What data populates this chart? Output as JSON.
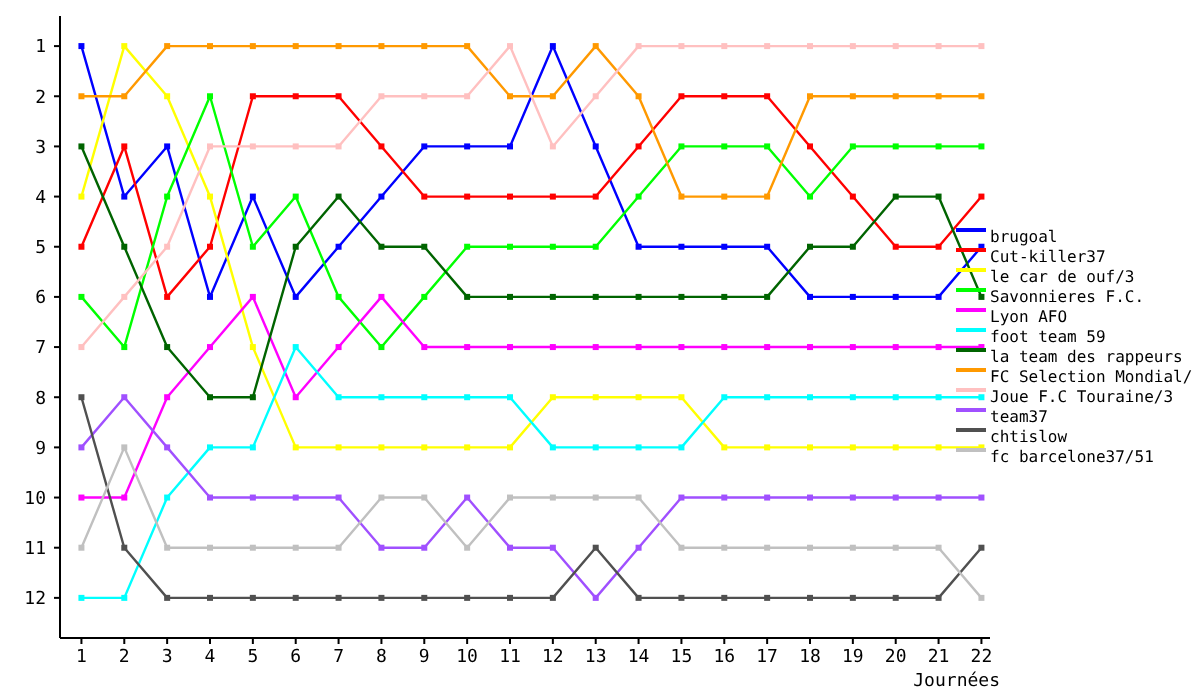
{
  "chart_data": {
    "type": "line",
    "xlabel": "Journées",
    "x": [
      1,
      2,
      3,
      4,
      5,
      6,
      7,
      8,
      9,
      10,
      11,
      12,
      13,
      14,
      15,
      16,
      17,
      18,
      19,
      20,
      21,
      22
    ],
    "xlim": [
      0.5,
      22.2
    ],
    "xticks": [
      1,
      2,
      3,
      4,
      5,
      6,
      7,
      8,
      9,
      10,
      11,
      12,
      13,
      14,
      15,
      16,
      17,
      18,
      19,
      20,
      21,
      22
    ],
    "ylim": [
      12.8,
      0.4
    ],
    "yticks": [
      1,
      2,
      3,
      4,
      5,
      6,
      7,
      8,
      9,
      10,
      11,
      12
    ],
    "grid": false,
    "legend": "right",
    "marker": "square",
    "line_style": "solid",
    "series": [
      {
        "name": "brugoal",
        "color": "#0000ff",
        "values": [
          1,
          4,
          3,
          6,
          4,
          6,
          5,
          4,
          3,
          3,
          3,
          1,
          3,
          5,
          5,
          5,
          5,
          6,
          6,
          6,
          6,
          5
        ]
      },
      {
        "name": "Cut-killer37",
        "color": "#ff0000",
        "values": [
          5,
          3,
          6,
          5,
          2,
          2,
          2,
          3,
          4,
          4,
          4,
          4,
          4,
          3,
          2,
          2,
          2,
          3,
          4,
          5,
          5,
          4
        ]
      },
      {
        "name": "le car de ouf/3",
        "color": "#ffff00",
        "values": [
          4,
          1,
          2,
          4,
          7,
          9,
          9,
          9,
          9,
          9,
          9,
          8,
          8,
          8,
          8,
          9,
          9,
          9,
          9,
          9,
          9,
          9
        ]
      },
      {
        "name": "Savonnieres F.C.",
        "color": "#00ff00",
        "values": [
          6,
          7,
          4,
          2,
          5,
          4,
          6,
          7,
          6,
          5,
          5,
          5,
          5,
          4,
          3,
          3,
          3,
          4,
          3,
          3,
          3,
          3
        ]
      },
      {
        "name": "Lyon AFO",
        "color": "#ff00ff",
        "values": [
          10,
          10,
          8,
          7,
          6,
          8,
          7,
          6,
          7,
          7,
          7,
          7,
          7,
          7,
          7,
          7,
          7,
          7,
          7,
          7,
          7,
          7
        ]
      },
      {
        "name": "foot team 59",
        "color": "#00ffff",
        "values": [
          12,
          12,
          10,
          9,
          9,
          7,
          8,
          8,
          8,
          8,
          8,
          9,
          9,
          9,
          9,
          8,
          8,
          8,
          8,
          8,
          8,
          8
        ]
      },
      {
        "name": "la team des rappeurs",
        "color": "#006400",
        "values": [
          3,
          5,
          7,
          8,
          8,
          5,
          4,
          5,
          5,
          6,
          6,
          6,
          6,
          6,
          6,
          6,
          6,
          5,
          5,
          4,
          4,
          6
        ]
      },
      {
        "name": "FC Selection Mondial/",
        "color": "#ff9900",
        "values": [
          2,
          2,
          1,
          1,
          1,
          1,
          1,
          1,
          1,
          1,
          2,
          2,
          1,
          2,
          4,
          4,
          4,
          2,
          2,
          2,
          2,
          2
        ]
      },
      {
        "name": "Joue F.C Touraine/3",
        "color": "#ffc0c0",
        "values": [
          7,
          6,
          5,
          3,
          3,
          3,
          3,
          2,
          2,
          2,
          1,
          3,
          2,
          1,
          1,
          1,
          1,
          1,
          1,
          1,
          1,
          1
        ]
      },
      {
        "name": "team37",
        "color": "#a050ff",
        "values": [
          9,
          8,
          9,
          10,
          10,
          10,
          10,
          11,
          11,
          10,
          11,
          11,
          12,
          11,
          10,
          10,
          10,
          10,
          10,
          10,
          10,
          10
        ]
      },
      {
        "name": "chtislow",
        "color": "#505050",
        "values": [
          8,
          11,
          12,
          12,
          12,
          12,
          12,
          12,
          12,
          12,
          12,
          12,
          11,
          12,
          12,
          12,
          12,
          12,
          12,
          12,
          12,
          11
        ]
      },
      {
        "name": "fc barcelone37/51",
        "color": "#c0c0c0",
        "values": [
          11,
          9,
          11,
          11,
          11,
          11,
          11,
          10,
          10,
          11,
          10,
          10,
          10,
          10,
          11,
          11,
          11,
          11,
          11,
          11,
          11,
          12
        ]
      }
    ]
  }
}
